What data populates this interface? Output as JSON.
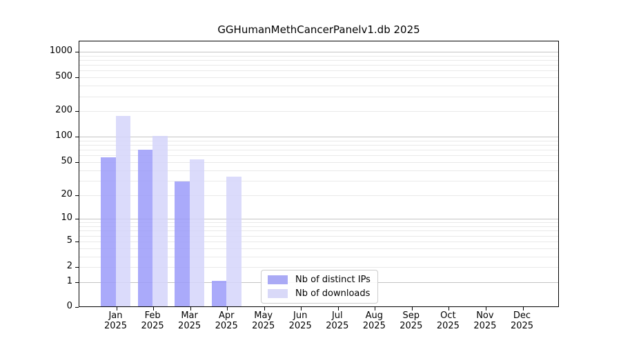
{
  "title": "GGHumanMethCancerPanelv1.db 2025",
  "chart_data": {
    "type": "bar",
    "title": "GGHumanMethCancerPanelv1.db 2025",
    "categories": [
      "Jan",
      "Feb",
      "Mar",
      "Apr",
      "May",
      "Jun",
      "Jul",
      "Aug",
      "Sep",
      "Oct",
      "Nov",
      "Dec"
    ],
    "category_year": "2025",
    "series": [
      {
        "name": "Nb of distinct IPs",
        "color": "#aaaaf5",
        "values": [
          55,
          68,
          28,
          1,
          0,
          0,
          0,
          0,
          0,
          0,
          0,
          0
        ]
      },
      {
        "name": "Nb of downloads",
        "color": "#d9d9f8",
        "values": [
          170,
          98,
          52,
          32,
          0,
          0,
          0,
          0,
          0,
          0,
          0,
          0
        ]
      }
    ],
    "yscale": "log1p",
    "y_ticks": [
      0,
      1,
      2,
      5,
      10,
      20,
      50,
      100,
      200,
      500,
      1000
    ],
    "ylim": [
      0,
      1300
    ],
    "grid": true,
    "legend_position": "lower center",
    "colors": {
      "distinct_ips_bar": "#aaaaf5",
      "downloads_bar": "#d9d9f8",
      "major_grid": "#c4c4c4",
      "minor_grid": "#e9e9e9",
      "axis": "#000000",
      "legend_border": "#cccccc"
    }
  }
}
